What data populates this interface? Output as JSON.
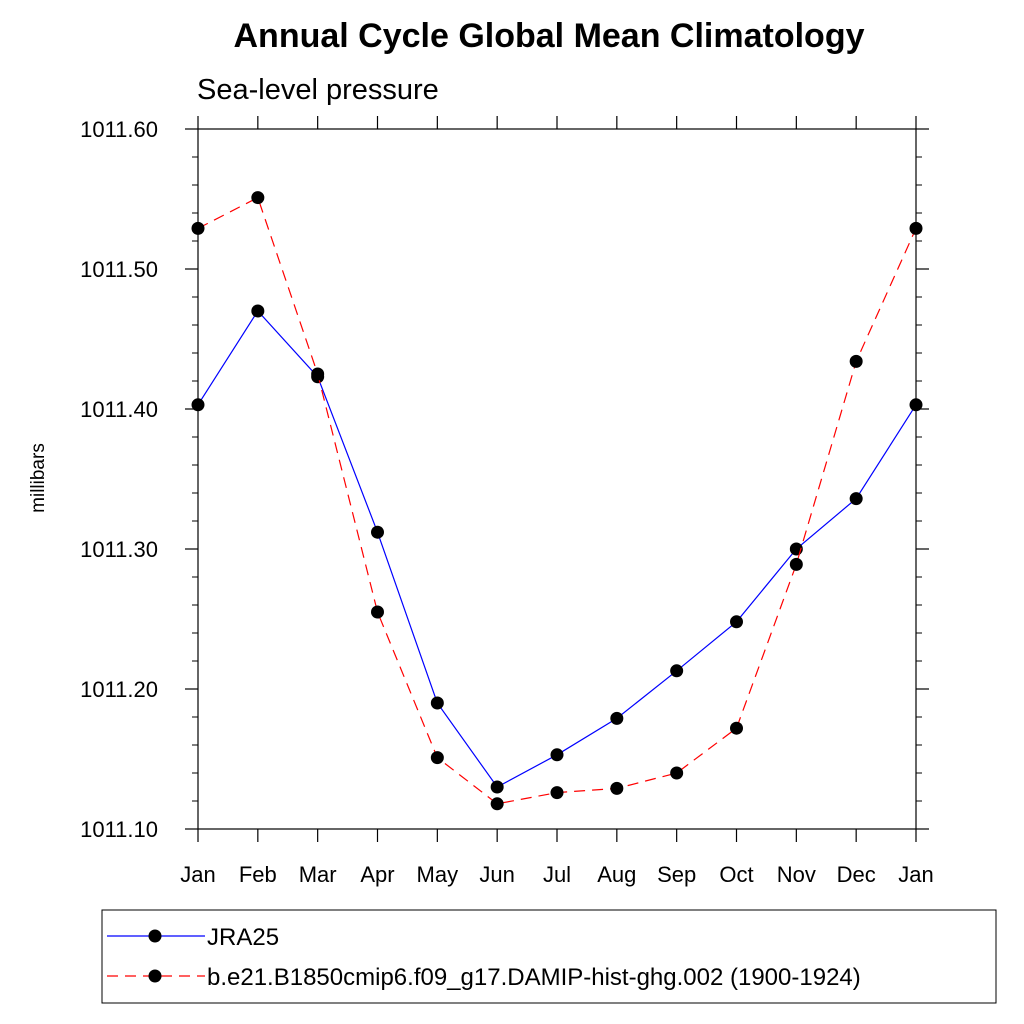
{
  "chart_data": {
    "type": "line",
    "title": "Annual Cycle Global Mean Climatology",
    "subtitle": "Sea-level pressure",
    "xlabel": "",
    "ylabel": "millibars",
    "categories": [
      "Jan",
      "Feb",
      "Mar",
      "Apr",
      "May",
      "Jun",
      "Jul",
      "Aug",
      "Sep",
      "Oct",
      "Nov",
      "Dec",
      "Jan"
    ],
    "ylim": [
      1011.1,
      1011.6
    ],
    "yticks": [
      "1011.10",
      "1011.20",
      "1011.30",
      "1011.40",
      "1011.50",
      "1011.60"
    ],
    "series": [
      {
        "name": "JRA25",
        "color": "#0000ff",
        "dash": "solid",
        "values": [
          1011.403,
          1011.47,
          1011.423,
          1011.312,
          1011.19,
          1011.13,
          1011.153,
          1011.179,
          1011.213,
          1011.248,
          1011.3,
          1011.336,
          1011.403
        ]
      },
      {
        "name": "b.e21.B1850cmip6.f09_g17.DAMIP-hist-ghg.002 (1900-1924)",
        "color": "#ff0000",
        "dash": "dashed",
        "values": [
          1011.529,
          1011.551,
          1011.425,
          1011.255,
          1011.151,
          1011.118,
          1011.126,
          1011.129,
          1011.14,
          1011.172,
          1011.289,
          1011.434,
          1011.529
        ]
      }
    ],
    "legend_position": "bottom"
  }
}
